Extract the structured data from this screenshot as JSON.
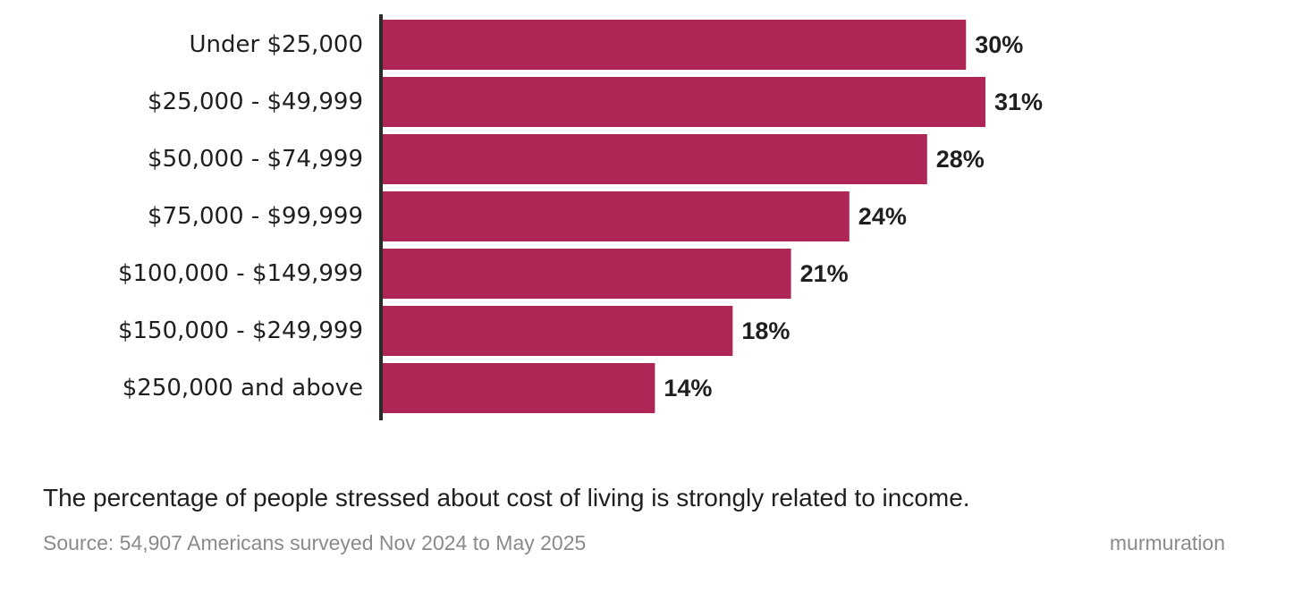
{
  "chart_data": {
    "type": "bar",
    "orientation": "horizontal",
    "categories": [
      "Under $25,000",
      "$25,000 - $49,999",
      "$50,000 - $74,999",
      "$75,000 - $99,999",
      "$100,000 - $149,999",
      "$150,000 - $249,999",
      "$250,000 and above"
    ],
    "values": [
      30,
      31,
      28,
      24,
      21,
      18,
      14
    ],
    "value_labels": [
      "30%",
      "31%",
      "28%",
      "24%",
      "21%",
      "18%",
      "14%"
    ],
    "xlim": [
      0,
      31
    ],
    "grid": false,
    "legend": "none",
    "bar_color": "#ae2656",
    "axis_color": "#2b2b2b"
  },
  "caption": "The percentage of people stressed about cost of living is strongly related to income.",
  "source": "Source: 54,907 Americans surveyed Nov 2024 to May 2025",
  "brand": "murmuration"
}
